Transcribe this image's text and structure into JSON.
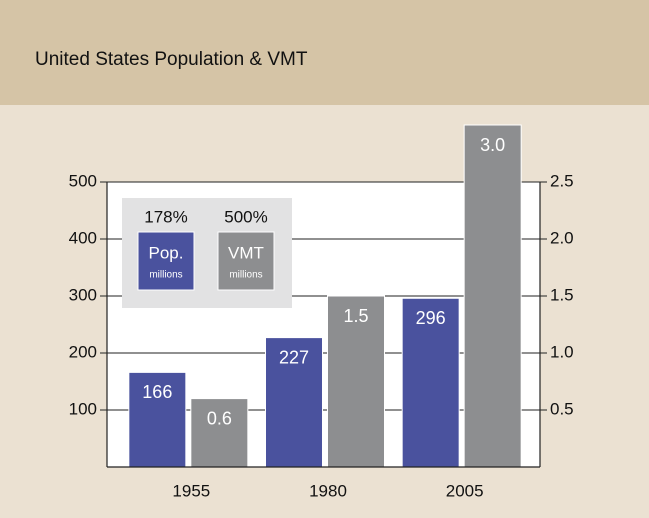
{
  "chart_data": {
    "type": "bar",
    "title": "United States Population & VMT",
    "categories": [
      "1955",
      "1980",
      "2005"
    ],
    "series": [
      {
        "name": "Pop.",
        "unit": "millions",
        "change": "178%",
        "color": "#4a529e",
        "values": [
          166,
          227,
          296
        ]
      },
      {
        "name": "VMT",
        "unit": "millions",
        "change": "500%",
        "color": "#8d8e90",
        "axis": "y2",
        "values": [
          0.6,
          1.5,
          3.0
        ],
        "value_labels": [
          "0.6",
          "1.5",
          "3.0"
        ]
      }
    ],
    "ylim": [
      0,
      500
    ],
    "yticks": [
      100,
      200,
      300,
      400,
      500
    ],
    "y2lim": [
      0,
      2.5
    ],
    "y2ticks": [
      0.5,
      {
        "value": 1.0,
        "label": "1.0"
      },
      1.5,
      {
        "value": 2.0,
        "label": "2.0"
      },
      2.5
    ],
    "grid": true
  }
}
